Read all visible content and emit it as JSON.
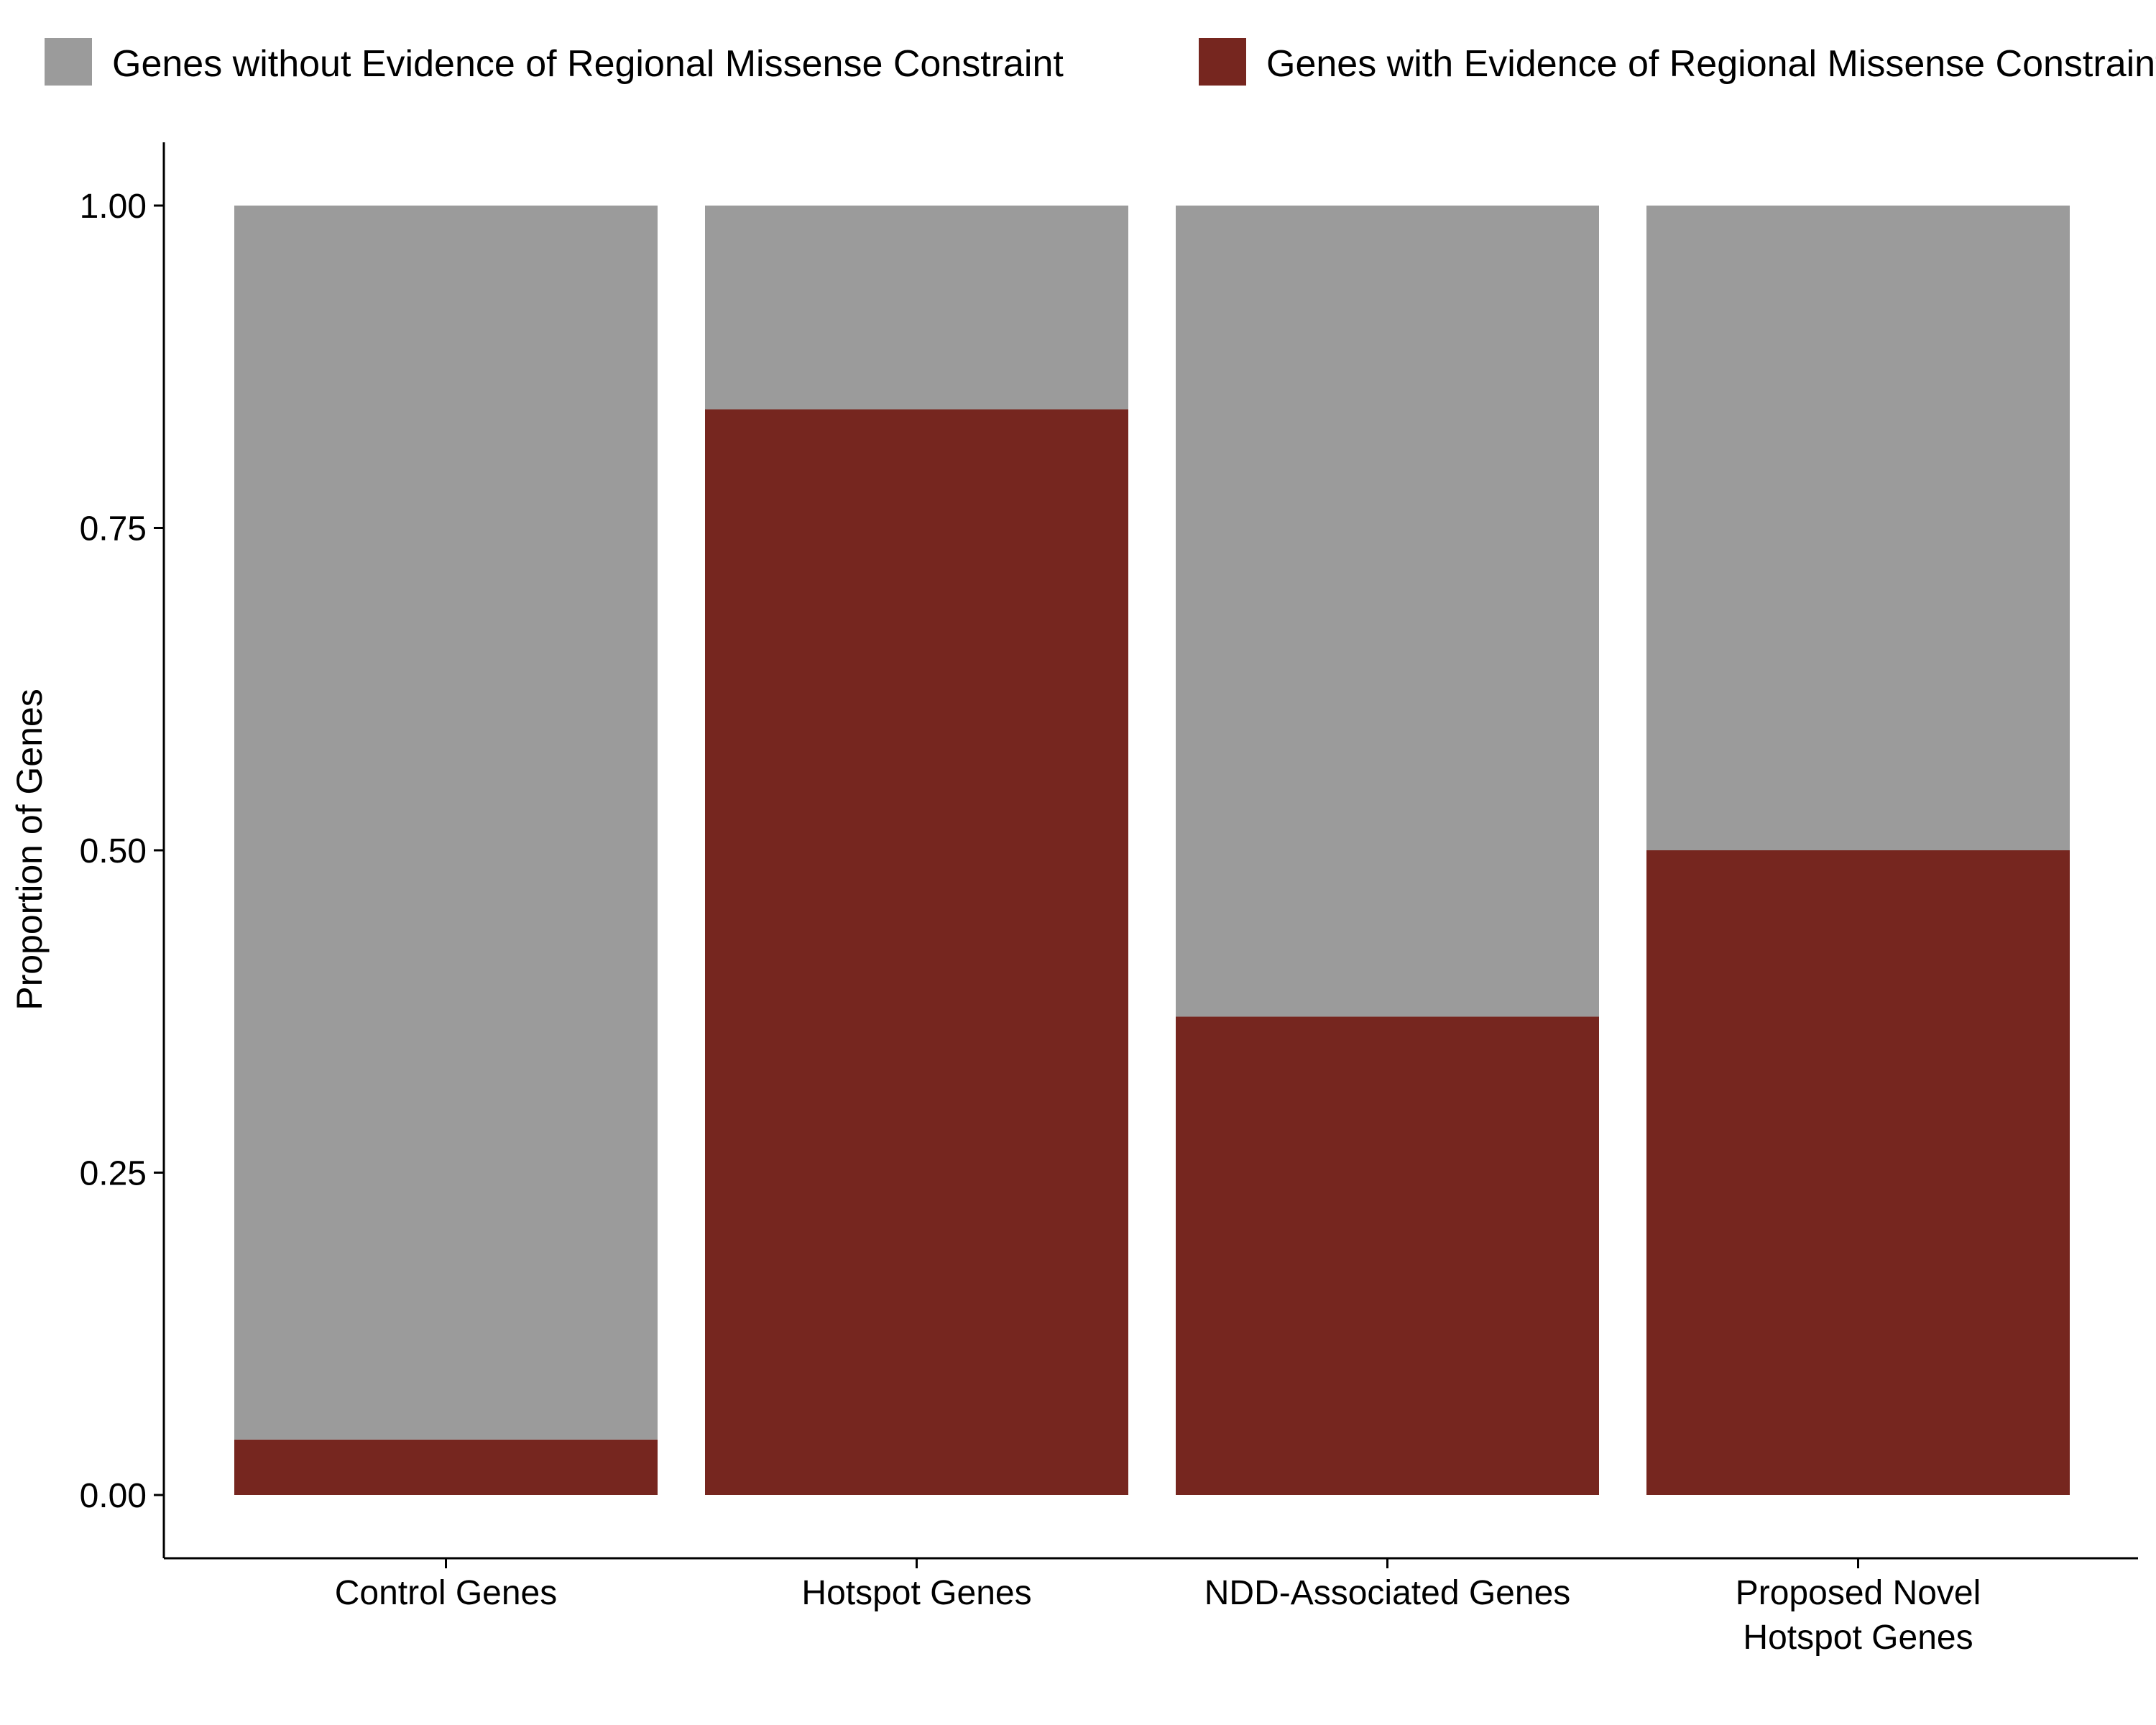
{
  "chart_data": {
    "type": "bar",
    "stacked": true,
    "title": "",
    "xlabel": "",
    "ylabel": "Proportion of Genes",
    "ylim": [
      0,
      1
    ],
    "yticks": [
      "0.00",
      "0.25",
      "0.50",
      "0.75",
      "1.00"
    ],
    "categories": [
      [
        "Control Genes"
      ],
      [
        "Hotspot Genes"
      ],
      [
        "NDD-Associated Genes"
      ],
      [
        "Proposed Novel",
        "Hotspot Genes"
      ]
    ],
    "series": [
      {
        "name": "Genes with Evidence of Regional Missense Constraint",
        "color": "#76261f",
        "values": [
          0.043,
          0.842,
          0.371,
          0.5
        ]
      },
      {
        "name": "Genes without Evidence of Regional Missense Constraint",
        "color": "#9b9b9b",
        "values": [
          0.957,
          0.158,
          0.629,
          0.5
        ]
      }
    ],
    "legend": {
      "position": "top",
      "entries": [
        "Genes without Evidence of Regional Missense Constraint",
        "Genes with Evidence of Regional Missense Constraint"
      ]
    },
    "grid": false
  }
}
